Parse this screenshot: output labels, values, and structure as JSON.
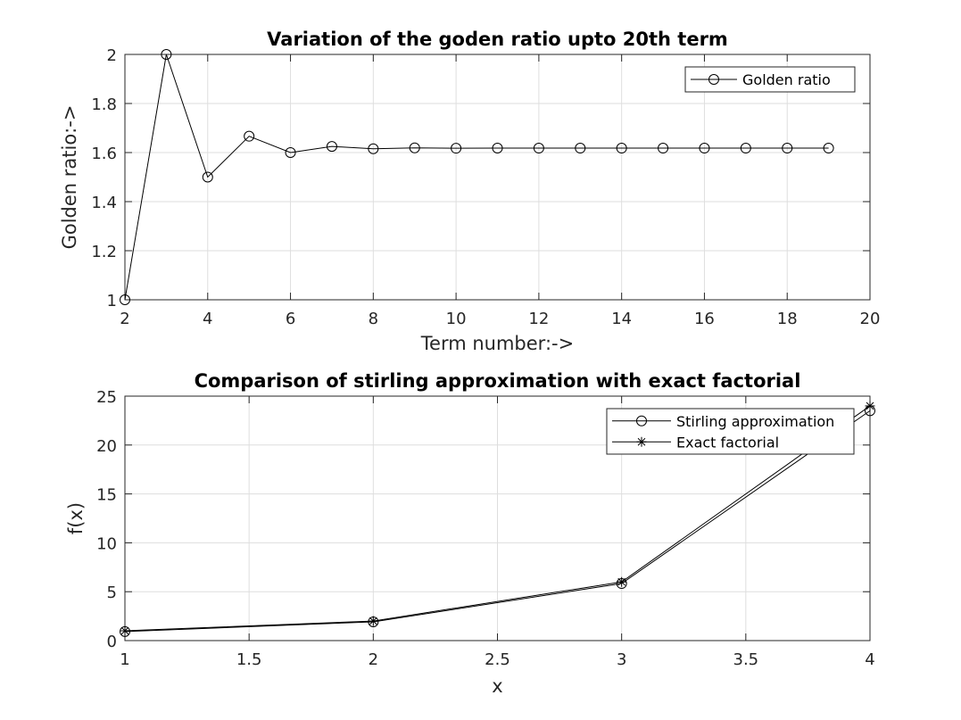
{
  "chart_data": [
    {
      "type": "line",
      "title": "Variation of the goden ratio upto 20th term",
      "xlabel": "Term number:->",
      "ylabel": "Golden ratio:->",
      "xlim": [
        2,
        20
      ],
      "ylim": [
        1,
        2
      ],
      "xticks": [
        2,
        4,
        6,
        8,
        10,
        12,
        14,
        16,
        18,
        20
      ],
      "yticks": [
        1,
        1.2,
        1.4,
        1.6,
        1.8,
        2
      ],
      "ytick_labels": [
        "1",
        "1.2",
        "1.4",
        "1.6",
        "1.8",
        "2"
      ],
      "grid": true,
      "legend_position": "top-right",
      "series": [
        {
          "name": "Golden ratio",
          "marker": "o",
          "color": "#000000",
          "x": [
            2,
            3,
            4,
            5,
            6,
            7,
            8,
            9,
            10,
            11,
            12,
            13,
            14,
            15,
            16,
            17,
            18,
            19
          ],
          "y": [
            1,
            2,
            1.5,
            1.6667,
            1.6,
            1.625,
            1.6154,
            1.619,
            1.6176,
            1.6182,
            1.618,
            1.618,
            1.618,
            1.618,
            1.618,
            1.618,
            1.618,
            1.618
          ]
        }
      ]
    },
    {
      "type": "line",
      "title": "Comparison of stirling approximation with exact factorial",
      "xlabel": "x",
      "ylabel": "f(x)",
      "xlim": [
        1,
        4
      ],
      "ylim": [
        0,
        25
      ],
      "xticks": [
        1,
        1.5,
        2,
        2.5,
        3,
        3.5,
        4
      ],
      "yticks": [
        0,
        5,
        10,
        15,
        20,
        25
      ],
      "grid": true,
      "legend_position": "top-right",
      "series": [
        {
          "name": "Stirling approximation",
          "marker": "o",
          "color": "#000000",
          "x": [
            1,
            2,
            3,
            4
          ],
          "y": [
            0.9221,
            1.919,
            5.8362,
            23.5062
          ]
        },
        {
          "name": "Exact factorial",
          "marker": "*",
          "color": "#000000",
          "x": [
            1,
            2,
            3,
            4
          ],
          "y": [
            1,
            2,
            6,
            24
          ]
        }
      ]
    }
  ]
}
